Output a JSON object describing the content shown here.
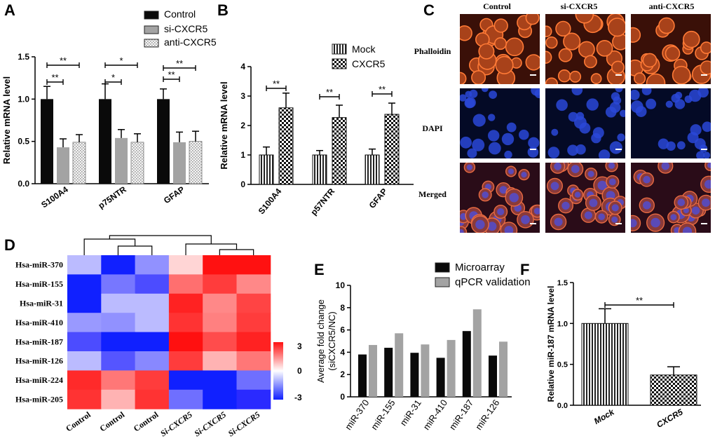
{
  "panels": {
    "A": "A",
    "B": "B",
    "C": "C",
    "D": "D",
    "E": "E",
    "F": "F"
  },
  "colors": {
    "black": "#0a0a0a",
    "gray": "#a3a3a3",
    "dotted": "#e6e6e6",
    "phalloidin": "#c04c18",
    "dapi": "#1e36b6",
    "heat_red": "#ff1010",
    "heat_blue": "#1020ff"
  },
  "chart_data": [
    {
      "id": "A",
      "type": "bar",
      "title": "",
      "categories": [
        "S100A4",
        "p75NTR",
        "GFAP"
      ],
      "series": [
        {
          "name": "Control",
          "values": [
            1.0,
            1.0,
            1.0
          ],
          "errors": [
            0.15,
            0.18,
            0.12
          ]
        },
        {
          "name": "si-CXCR5",
          "values": [
            0.43,
            0.54,
            0.49
          ],
          "errors": [
            0.1,
            0.1,
            0.12
          ]
        },
        {
          "name": "anti-CXCR5",
          "values": [
            0.49,
            0.49,
            0.5
          ],
          "errors": [
            0.09,
            0.1,
            0.12
          ]
        }
      ],
      "ylabel": "Relative mRNA level",
      "ylim": [
        0,
        1.5
      ],
      "yticks": [
        "0.0",
        "0.5",
        "1.0",
        "1.5"
      ],
      "significance": [
        {
          "category": 0,
          "from": 0,
          "to": 1,
          "label": "**"
        },
        {
          "category": 0,
          "from": 0,
          "to": 2,
          "label": "**"
        },
        {
          "category": 1,
          "from": 0,
          "to": 1,
          "label": "*"
        },
        {
          "category": 1,
          "from": 0,
          "to": 2,
          "label": "*"
        },
        {
          "category": 2,
          "from": 0,
          "to": 1,
          "label": "**"
        },
        {
          "category": 2,
          "from": 0,
          "to": 2,
          "label": "**"
        }
      ]
    },
    {
      "id": "B",
      "type": "bar",
      "title": "",
      "categories": [
        "S100A4",
        "p57NTR",
        "GFAP"
      ],
      "series": [
        {
          "name": "Mock",
          "values": [
            1.0,
            1.0,
            1.0
          ],
          "errors": [
            0.27,
            0.15,
            0.2
          ]
        },
        {
          "name": "CXCR5",
          "values": [
            2.6,
            2.27,
            2.38
          ],
          "errors": [
            0.5,
            0.42,
            0.38
          ]
        }
      ],
      "ylabel": "Relative mRNA level",
      "ylim": [
        0,
        4
      ],
      "yticks": [
        "0",
        "1",
        "2",
        "3",
        "4"
      ],
      "significance": [
        {
          "category": 0,
          "label": "**"
        },
        {
          "category": 1,
          "label": "**"
        },
        {
          "category": 2,
          "label": "**"
        }
      ]
    },
    {
      "id": "D",
      "type": "heatmap",
      "rows": [
        "Hsa-miR-370",
        "Hsa-miR-155",
        "Hsa-miR-31",
        "Hsa-miR-410",
        "Hsa-miR-187",
        "Hsa-miR-126",
        "Hsa-miR-224",
        "Hsa-miR-205"
      ],
      "columns": [
        "Control",
        "Control",
        "Control",
        "Si-CXCR5",
        "Si-CXCR5",
        "Si-CXCR5"
      ],
      "values": [
        [
          -0.8,
          -2.8,
          -1.3,
          0.5,
          2.8,
          2.8
        ],
        [
          -2.9,
          -1.6,
          -2.1,
          1.7,
          2.3,
          1.4
        ],
        [
          -2.9,
          -0.8,
          -0.8,
          2.6,
          1.4,
          2.2
        ],
        [
          -1.2,
          -1.3,
          -0.8,
          2.4,
          1.5,
          2.3
        ],
        [
          -2.1,
          -2.9,
          -2.9,
          2.9,
          2.1,
          2.6
        ],
        [
          -0.8,
          -2.0,
          -1.4,
          2.3,
          0.9,
          1.6
        ],
        [
          2.5,
          1.6,
          2.3,
          -2.9,
          -2.9,
          -1.7
        ],
        [
          2.4,
          0.9,
          2.4,
          -1.7,
          -2.9,
          -2.5
        ]
      ],
      "scale": {
        "min": -3,
        "max": 3,
        "labels": [
          "3",
          "0",
          "-3"
        ]
      }
    },
    {
      "id": "E",
      "type": "bar",
      "title": "",
      "categories": [
        "miR-370",
        "miR-155",
        "miR-31",
        "miR-410",
        "miR-187",
        "miR-126"
      ],
      "series": [
        {
          "name": "Microarray",
          "values": [
            3.8,
            4.4,
            3.95,
            3.5,
            5.9,
            3.7
          ]
        },
        {
          "name": "qPCR validation",
          "values": [
            4.65,
            5.7,
            4.7,
            5.1,
            7.85,
            4.95
          ]
        }
      ],
      "ylabel": "Average fold change (siCXCR5/NC)",
      "ylim": [
        0,
        10
      ],
      "yticks": [
        "0",
        "2",
        "4",
        "6",
        "8",
        "10"
      ]
    },
    {
      "id": "F",
      "type": "bar",
      "title": "",
      "categories": [
        "Mock",
        "CXCR5"
      ],
      "values": [
        1.0,
        0.37
      ],
      "errors": [
        0.18,
        0.1
      ],
      "ylabel": "Relative miR-187 mRNA level",
      "ylim": [
        0,
        1.5
      ],
      "yticks": [
        "0.0",
        "0.5",
        "1.0",
        "1.5"
      ],
      "significance": [
        {
          "from": 0,
          "to": 1,
          "label": "**"
        }
      ]
    }
  ],
  "panel_c": {
    "columns": [
      "Control",
      "si-CXCR5",
      "anti-CXCR5"
    ],
    "rows": [
      "Phalloidin",
      "DAPI",
      "Merged"
    ]
  }
}
